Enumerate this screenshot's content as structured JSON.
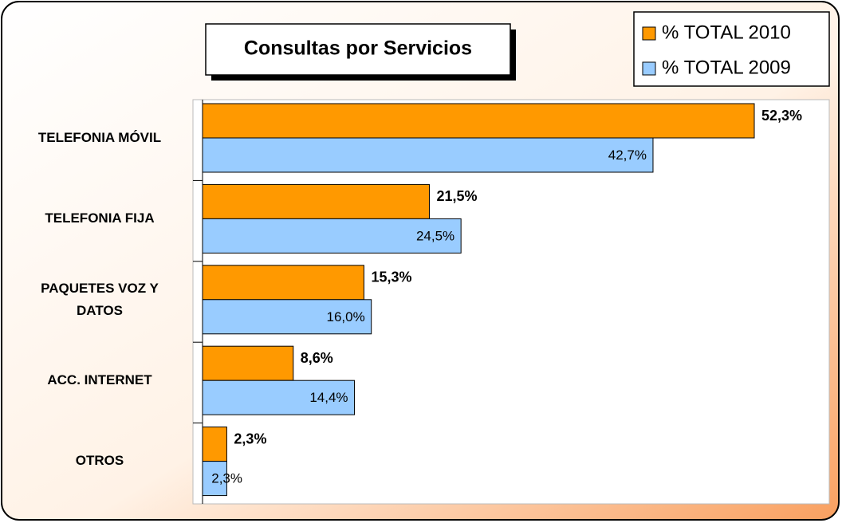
{
  "chart_data": {
    "type": "bar",
    "orientation": "horizontal",
    "title": "Consultas por Servicios",
    "categories": [
      "TELEFONIA MÓVIL",
      "TELEFONIA FIJA",
      "PAQUETES VOZ Y DATOS",
      "ACC. INTERNET",
      "OTROS"
    ],
    "series": [
      {
        "name": "% TOTAL 2010",
        "color": "#ff9900",
        "values": [
          52.3,
          21.5,
          15.3,
          8.6,
          2.3
        ],
        "value_labels": [
          "52,3%",
          "21,5%",
          "15,3%",
          "8,6%",
          "2,3%"
        ]
      },
      {
        "name": "% TOTAL 2009",
        "color": "#99ccff",
        "values": [
          42.7,
          24.5,
          16.0,
          14.4,
          2.3
        ],
        "value_labels": [
          "42,7%",
          "24,5%",
          "16,0%",
          "14,4%",
          "2,3%"
        ]
      }
    ],
    "legend": "top-right"
  }
}
